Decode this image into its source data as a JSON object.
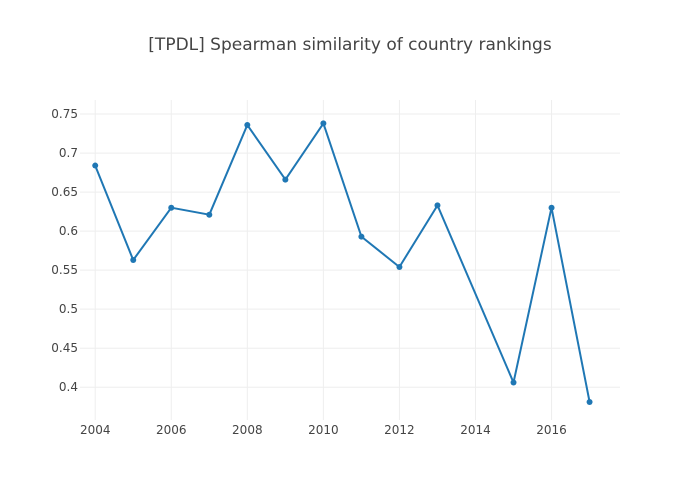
{
  "chart_data": {
    "type": "line",
    "title": "[TPDL] Spearman similarity of country rankings",
    "xlabel": "",
    "ylabel": "",
    "xlim": [
      2003.6,
      2017.8
    ],
    "ylim": [
      0.358,
      0.768
    ],
    "x_ticks": [
      2004,
      2006,
      2008,
      2010,
      2012,
      2014,
      2016
    ],
    "x_tick_labels": [
      "2004",
      "2006",
      "2008",
      "2010",
      "2012",
      "2014",
      "2016"
    ],
    "y_ticks": [
      0.4,
      0.45,
      0.5,
      0.55,
      0.6,
      0.65,
      0.7,
      0.75
    ],
    "y_tick_labels": [
      "0.4",
      "0.45",
      "0.5",
      "0.55",
      "0.6",
      "0.65",
      "0.7",
      "0.75"
    ],
    "grid": true,
    "legend": "none",
    "series": [
      {
        "color": "#1f77b4",
        "mode": "lines+markers",
        "x": [
          2004,
          2005,
          2006,
          2007,
          2008,
          2009,
          2010,
          2011,
          2012,
          2013,
          2015,
          2016,
          2017
        ],
        "y": [
          0.684,
          0.563,
          0.63,
          0.621,
          0.736,
          0.666,
          0.738,
          0.593,
          0.554,
          0.633,
          0.406,
          0.63,
          0.381
        ]
      }
    ]
  }
}
